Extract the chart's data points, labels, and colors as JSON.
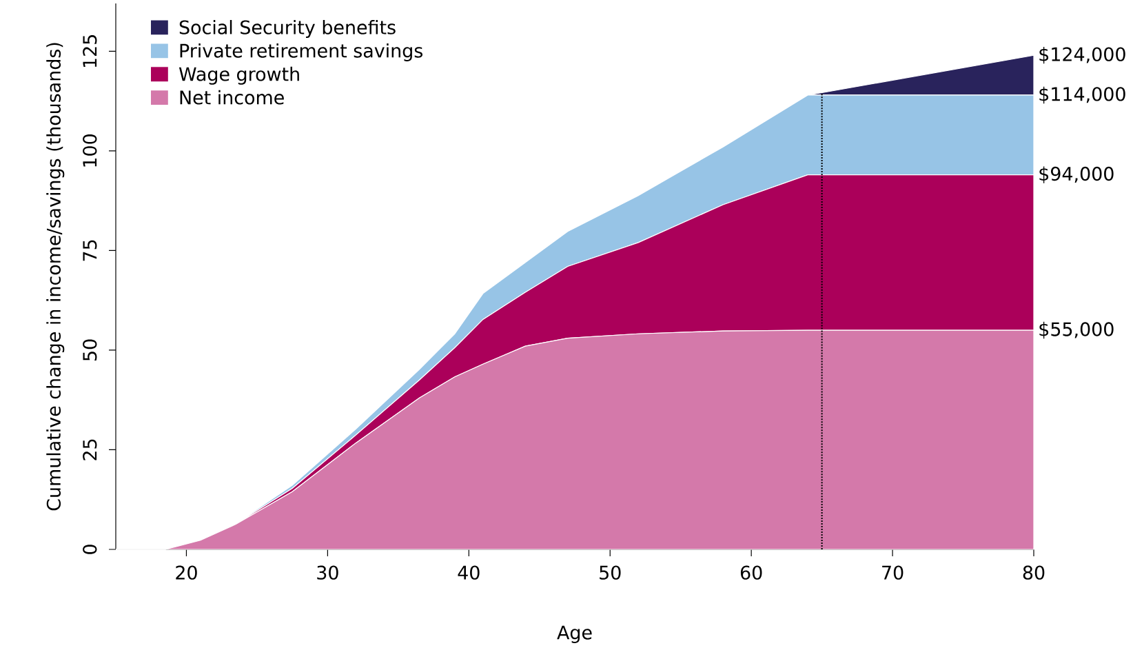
{
  "chart_data": {
    "type": "area",
    "stacked": true,
    "xlabel": "Age",
    "ylabel": "Cumulative change in income/savings (thousands)",
    "x": [
      15,
      18.5,
      21,
      23.5,
      27.5,
      32,
      36.5,
      39,
      41,
      44,
      47,
      52,
      58,
      64,
      65,
      80
    ],
    "series": [
      {
        "name": "Net income",
        "color": "#d479aa",
        "values": [
          0,
          0,
          2.3,
          6.3,
          14.5,
          26.7,
          38,
          43.3,
          46.5,
          51,
          53,
          54.1,
          54.8,
          55,
          55,
          55
        ]
      },
      {
        "name": "Wage growth",
        "color": "#ab005a",
        "values": [
          0,
          0,
          0,
          0.1,
          0.8,
          2,
          4.5,
          7.3,
          11.2,
          13.5,
          18,
          22.9,
          31.7,
          39,
          39,
          39
        ]
      },
      {
        "name": "Private retirement savings",
        "color": "#97c4e6",
        "values": [
          0,
          0,
          0.1,
          0.1,
          0.8,
          1.5,
          2.7,
          3.5,
          6.5,
          7.5,
          8.8,
          11.8,
          14.5,
          20,
          20,
          20
        ]
      },
      {
        "name": "Social Security benefits",
        "color": "#29235c",
        "values": [
          0,
          0,
          0,
          0,
          0,
          0,
          0,
          0,
          0,
          0,
          0,
          0,
          0,
          0,
          0.6,
          10
        ]
      }
    ],
    "xlim": [
      15,
      80
    ],
    "xticks": [
      20,
      30,
      40,
      50,
      60,
      70,
      80
    ],
    "ylim": [
      0,
      137
    ],
    "yticks": [
      0,
      25,
      50,
      75,
      100,
      125
    ],
    "ref_lines": [
      {
        "axis": "x",
        "value": 65,
        "line_style": "dotted"
      }
    ],
    "annotations": [
      "$124,000",
      "$114,000",
      "$94,000",
      "$55,000"
    ],
    "legend": "top left",
    "grid": false
  }
}
